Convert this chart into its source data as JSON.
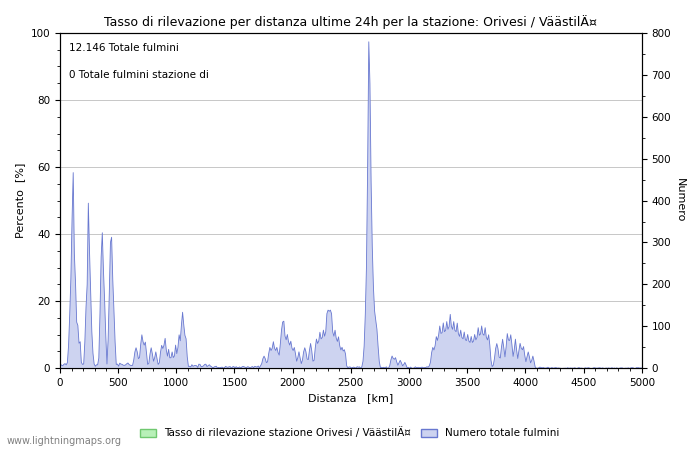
{
  "title": "Tasso di rilevazione per distanza ultime 24h per la stazione: Orivesi / VäästilÄ¤",
  "xlabel": "Distanza   [km]",
  "ylabel_left": "Percento  [%]",
  "ylabel_right": "Numero",
  "annotation_line1": "12.146 Totale fulmini",
  "annotation_line2": "0 Totale fulmini stazione di",
  "legend_label1": "Tasso di rilevazione stazione Orivesi / VäästilÄ¤",
  "legend_label2": "Numero totale fulmini",
  "watermark": "www.lightningmaps.org",
  "xlim": [
    0,
    5000
  ],
  "ylim_left": [
    0,
    100
  ],
  "ylim_right": [
    0,
    800
  ],
  "xticks": [
    0,
    500,
    1000,
    1500,
    2000,
    2500,
    3000,
    3500,
    4000,
    4500,
    5000
  ],
  "yticks_left": [
    0,
    20,
    40,
    60,
    80,
    100
  ],
  "yticks_right": [
    0,
    100,
    200,
    300,
    400,
    500,
    600,
    700,
    800
  ],
  "fill_color": "#cdd3f0",
  "line_color": "#6878d0",
  "green_fill_color": "#b8f0b8",
  "green_edge_color": "#70c870",
  "bg_color": "#ffffff",
  "grid_color": "#b0b0b0"
}
